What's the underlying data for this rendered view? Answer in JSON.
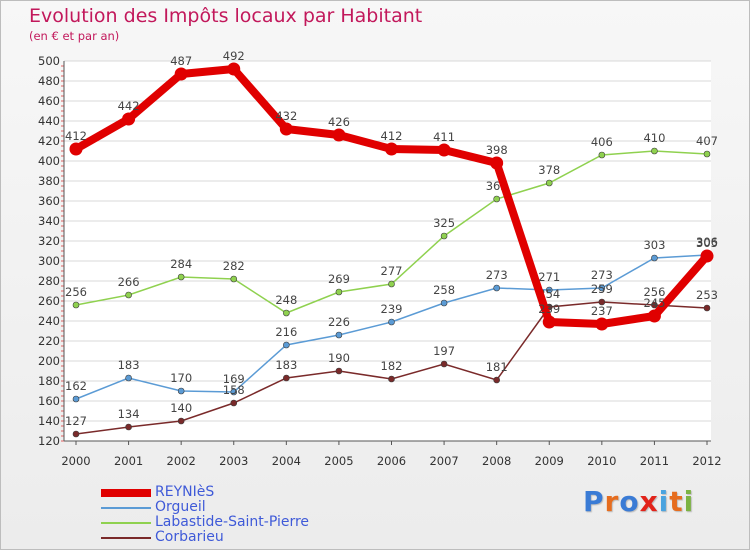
{
  "title": "Evolution des Impôts locaux par Habitant",
  "subtitle": "(en € et par an)",
  "logo": {
    "letters": [
      "P",
      "r",
      "o",
      "x",
      "i",
      "t",
      "i"
    ],
    "colors": [
      "#3a7bd5",
      "#e66d1f",
      "#3a7bd5",
      "#e2231a",
      "#4aa3df",
      "#e66d1f",
      "#7cb342"
    ]
  },
  "chart_data": {
    "type": "line",
    "title": "Evolution des Impôts locaux par Habitant",
    "subtitle": "(en € et par an)",
    "xlabel": "",
    "ylabel": "",
    "ylim": [
      120,
      500
    ],
    "y_tick_step": 20,
    "grid": "horizontal",
    "legend_position": "bottom-left",
    "categories": [
      "2000",
      "2001",
      "2002",
      "2003",
      "2004",
      "2005",
      "2006",
      "2007",
      "2008",
      "2009",
      "2010",
      "2011",
      "2012"
    ],
    "series": [
      {
        "name": "REYNIèS",
        "color": "#e00000",
        "bold": true,
        "values": [
          412,
          442,
          487,
          492,
          432,
          426,
          412,
          411,
          398,
          239,
          237,
          245,
          305
        ],
        "labels": [
          "412",
          "442",
          "487",
          "492",
          "432",
          "426",
          "412",
          "411",
          "398",
          "239",
          "237",
          "245",
          "305"
        ]
      },
      {
        "name": "Orgueil",
        "color": "#5b9bd5",
        "bold": false,
        "values": [
          162,
          183,
          170,
          169,
          216,
          226,
          239,
          258,
          273,
          271,
          273,
          303,
          306
        ],
        "labels": [
          "162",
          "183",
          "170",
          "169",
          "216",
          "226",
          "239",
          "258",
          "273",
          "271",
          "273",
          "303",
          "306"
        ]
      },
      {
        "name": "Labastide-Saint-Pierre",
        "color": "#8fd14f",
        "bold": false,
        "values": [
          256,
          266,
          284,
          282,
          248,
          269,
          277,
          325,
          362,
          378,
          406,
          410,
          407
        ],
        "labels": [
          "256",
          "266",
          "284",
          "282",
          "248",
          "269",
          "277",
          "325",
          "362",
          "378",
          "406",
          "410",
          "407"
        ]
      },
      {
        "name": "Corbarieu",
        "color": "#7a2a2a",
        "bold": false,
        "values": [
          127,
          134,
          140,
          158,
          183,
          190,
          182,
          197,
          181,
          254,
          259,
          256,
          253
        ],
        "labels": [
          "127",
          "134",
          "140",
          "158",
          "183",
          "190",
          "182",
          "197",
          "181",
          "254",
          "259",
          "256",
          "253"
        ]
      }
    ]
  }
}
